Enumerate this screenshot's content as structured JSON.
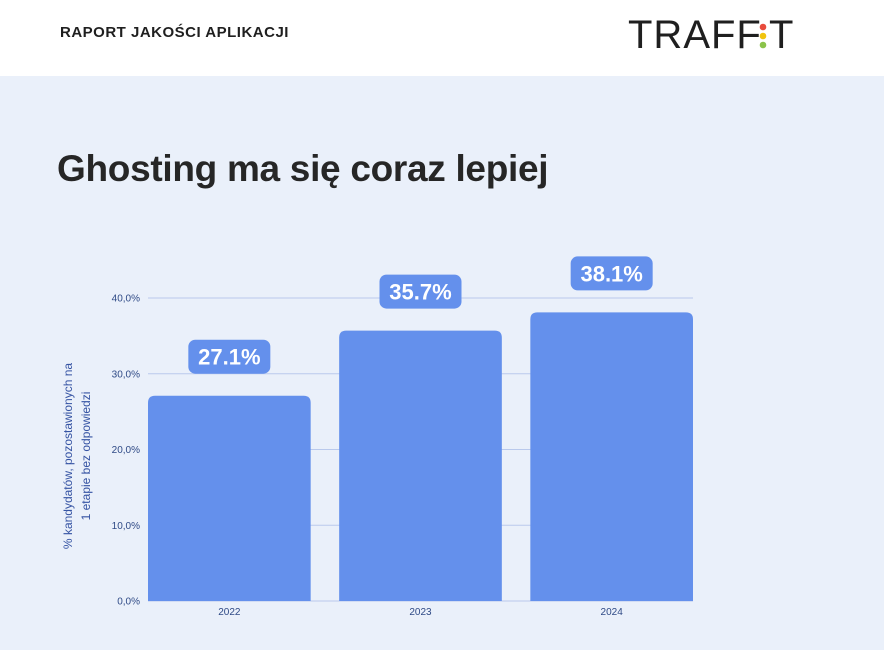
{
  "header": {
    "report_title": "RAPORT JAKOŚCI APLIKACJI",
    "logo_text_left": "TRAFF",
    "logo_text_right": "T",
    "logo_colors": [
      "#e84b3c",
      "#f1c40f",
      "#8bc34a"
    ]
  },
  "headline": "Ghosting ma się coraz lepiej",
  "colors": {
    "bar": "#6490ec",
    "label_bg": "#6490ec",
    "grid": "#b9c9ec",
    "panel": "#eaf0fa"
  },
  "chart_data": {
    "type": "bar",
    "title": "",
    "categories": [
      "2022",
      "2023",
      "2024"
    ],
    "values": [
      27.1,
      35.7,
      38.1
    ],
    "data_labels": [
      "27.1%",
      "35.7%",
      "38.1%"
    ],
    "ylabel_lines": [
      "% kandydatów, pozostawionych na",
      "1 etapie bez odpowiedzi"
    ],
    "xlabel": "",
    "ylim": [
      0,
      40
    ],
    "yticks": [
      0,
      10,
      20,
      30,
      40
    ],
    "ytick_labels": [
      "0,0%",
      "10,0%",
      "20,0%",
      "30,0%",
      "40,0%"
    ],
    "grid": true,
    "legend": "none"
  }
}
